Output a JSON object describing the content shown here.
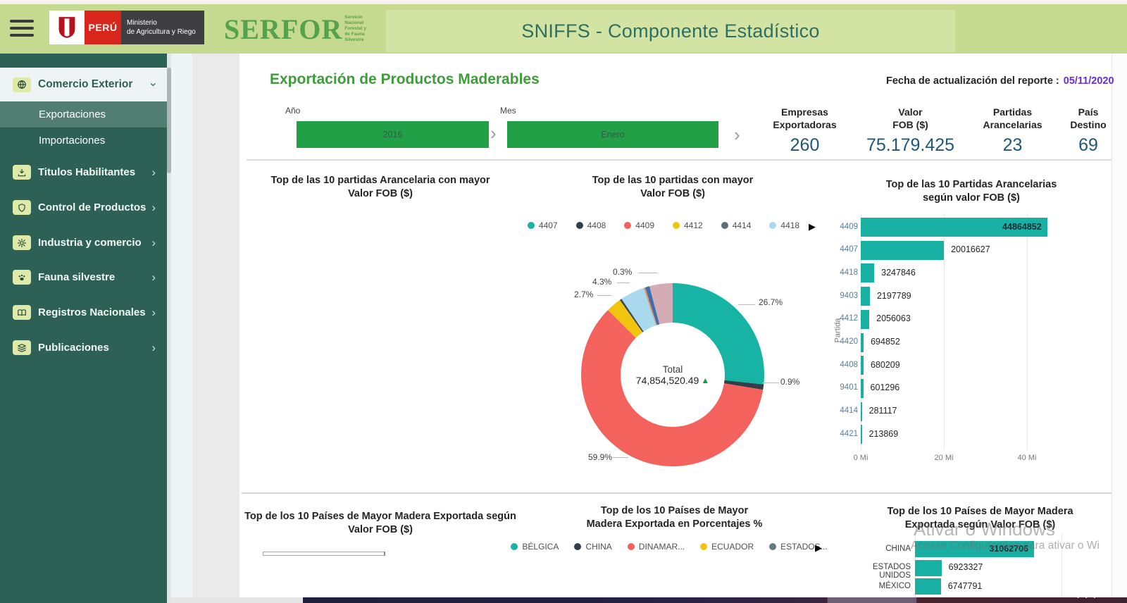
{
  "icons": {
    "chevron_right": "›",
    "chevron_down": "›",
    "flow_chevron": "›",
    "legend_next": "▶",
    "kpi_trend_up": "▲",
    "taskbar_dots": "• • •"
  },
  "header": {
    "app_title": "SNIFFS - Componente Estadístico",
    "peru_logo": {
      "country": "PERÚ",
      "ministry_line1": "Ministerio",
      "ministry_line2": "de Agricultura y Riego"
    },
    "serfor_logo": {
      "name": "SERFOR",
      "tagline_lines": [
        "Servicio",
        "Nacional",
        "Forestal y",
        "de Fauna",
        "Silvestre"
      ]
    }
  },
  "sidebar": {
    "items": [
      {
        "label": "Comercio Exterior",
        "icon": "globe",
        "type": "parent-open"
      },
      {
        "label": "Exportaciones",
        "type": "child",
        "selected": true
      },
      {
        "label": "Importaciones",
        "type": "child",
        "selected": false
      },
      {
        "label": "Titulos Habilitantes",
        "icon": "download",
        "type": "parent"
      },
      {
        "label": "Control de Productos",
        "icon": "shield",
        "type": "parent"
      },
      {
        "label": "Industria y comercio",
        "icon": "gear",
        "type": "parent"
      },
      {
        "label": "Fauna silvestre",
        "icon": "paw",
        "type": "parent"
      },
      {
        "label": "Registros Nacionales",
        "icon": "book",
        "type": "parent"
      },
      {
        "label": "Publicaciones",
        "icon": "publications",
        "type": "parent"
      }
    ]
  },
  "report": {
    "page_title": "Exportación de Productos Maderables",
    "updated_label": "Fecha de actualización del reporte :",
    "updated_date": "05/11/2020",
    "filters": [
      {
        "label": "Año",
        "value": "2016"
      },
      {
        "label": "Mes",
        "value": "Enero"
      }
    ],
    "kpis": [
      {
        "line1": "Empresas",
        "line2": "Exportadoras",
        "value": "260"
      },
      {
        "line1": "Valor",
        "line2": "FOB ($)",
        "value": "75.179.425"
      },
      {
        "line1": "Partidas",
        "line2": "Arancelarias",
        "value": "23"
      },
      {
        "line1": "País",
        "line2": "Destino",
        "value": "69"
      }
    ]
  },
  "watermark": {
    "line1": "Ativar o Windows",
    "line2": "Acesse Configurações para ativar o Wi"
  },
  "chart_data": [
    {
      "type": "bar",
      "title_line1": "Top de las 10 partidas Arancelaria con mayor",
      "title_line2": "Valor FOB ($)",
      "categories": [],
      "values": [],
      "note": "chart body not rendered (blank) in screenshot"
    },
    {
      "type": "pie",
      "title_line1": "Top de las 10 partidas con mayor",
      "title_line2": "Valor FOB ($)",
      "legend_position": "top",
      "legend": [
        {
          "label": "4407",
          "color": "#17b3a5"
        },
        {
          "label": "4408",
          "color": "#323f48"
        },
        {
          "label": "4409",
          "color": "#f4625d"
        },
        {
          "label": "4412",
          "color": "#f1c40f"
        },
        {
          "label": "4414",
          "color": "#5f6e75"
        },
        {
          "label": "4418",
          "color": "#a8d9ef"
        }
      ],
      "center_label": "Total",
      "center_value": "74,854,520.49",
      "slices": [
        {
          "name": "4407",
          "pct": 26.7,
          "color": "#17b3a5",
          "label": "26.7%"
        },
        {
          "name": "4408",
          "pct": 0.9,
          "color": "#323f48",
          "label": "0.9%"
        },
        {
          "name": "4409",
          "pct": 59.9,
          "color": "#f4625d",
          "label": "59.9%"
        },
        {
          "name": "4412",
          "pct": 2.7,
          "color": "#f1c40f",
          "label": "2.7%"
        },
        {
          "name": "4414",
          "pct": 0.35,
          "color": "#3f4c54",
          "label": ""
        },
        {
          "name": "4418",
          "pct": 4.3,
          "color": "#a8d9ef",
          "label": "4.3%"
        },
        {
          "name": "other-1",
          "pct": 0.3,
          "color": "#f09068",
          "label": "0.3%"
        },
        {
          "name": "other-2",
          "pct": 0.75,
          "color": "#3b6fae",
          "label": ""
        },
        {
          "name": "other-3",
          "pct": 4.0,
          "color": "#d4acb5",
          "label": ""
        }
      ]
    },
    {
      "type": "bar",
      "title_line1": "Top de las 10 Partidas Arancelarias",
      "title_line2": "según valor FOB ($)",
      "categories": [
        "4409",
        "4407",
        "4418",
        "9403",
        "4412",
        "4420",
        "4408",
        "9401",
        "4414",
        "4421"
      ],
      "values": [
        44864852,
        20016627,
        3247846,
        2197789,
        2056063,
        694852,
        680209,
        601296,
        281117,
        213869
      ],
      "bar_color": "#17b0a2",
      "ylabel": "Partida",
      "x_ticks": [
        "0 Mi",
        "20 Mi",
        "40 Mi"
      ],
      "x_tick_values_mi": [
        0,
        20,
        40
      ]
    },
    {
      "type": "bar",
      "title_line1": "Top de los 10 Países de Mayor Madera Exportada según",
      "title_line2": "Valor FOB ($)",
      "categories": [],
      "values": [],
      "note": "only an empty outlined bar visible below the title"
    },
    {
      "type": "pie",
      "title_line1": "Top de los 10 Países de Mayor",
      "title_line2": "Madera Exportada en Porcentajes %",
      "legend": [
        {
          "label": "BÉLGICA",
          "color": "#17b3a5"
        },
        {
          "label": "CHINA",
          "color": "#323f48"
        },
        {
          "label": "DINAMAR...",
          "color": "#f4625d"
        },
        {
          "label": "ECUADOR",
          "color": "#f1c40f"
        },
        {
          "label": "ESTADOS...",
          "color": "#667a7e"
        }
      ],
      "note": "pie body cut off by screen edge; only legend visible"
    },
    {
      "type": "bar",
      "title_line1": "Top de los 10 Países de Mayor Madera",
      "title_line2": "Exportada según Valor FOB ($)",
      "categories": [
        "CHINA",
        "ESTADOS UNIDOS",
        "MÉXICO"
      ],
      "values": [
        31062706,
        6923327,
        6747791
      ],
      "bar_color": "#17b0a2",
      "note": "list truncated by bottom screen edge"
    }
  ]
}
